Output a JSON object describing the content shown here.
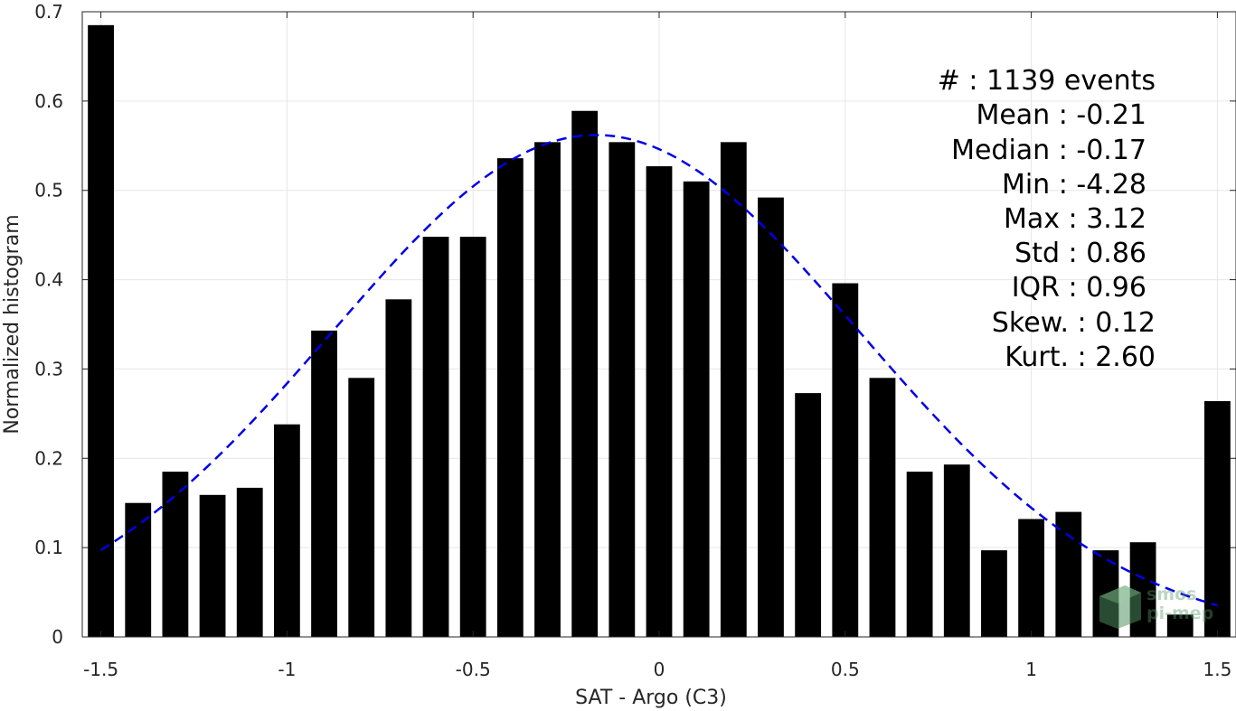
{
  "chart_data": {
    "type": "bar",
    "title": "",
    "xlabel": "SAT - Argo (C3)",
    "ylabel": "Normalized histogram",
    "xlim": [
      -1.55,
      1.55
    ],
    "ylim": [
      0,
      0.7
    ],
    "grid": true,
    "x": [
      -1.5,
      -1.4,
      -1.3,
      -1.2,
      -1.1,
      -1.0,
      -0.9,
      -0.8,
      -0.7,
      -0.6,
      -0.5,
      -0.4,
      -0.3,
      -0.2,
      -0.1,
      0.0,
      0.1,
      0.2,
      0.3,
      0.4,
      0.5,
      0.6,
      0.7,
      0.8,
      0.9,
      1.0,
      1.1,
      1.2,
      1.3,
      1.4,
      1.5
    ],
    "values": [
      0.685,
      0.15,
      0.185,
      0.159,
      0.167,
      0.238,
      0.343,
      0.29,
      0.378,
      0.448,
      0.448,
      0.536,
      0.554,
      0.589,
      0.554,
      0.527,
      0.51,
      0.554,
      0.492,
      0.273,
      0.396,
      0.29,
      0.185,
      0.193,
      0.097,
      0.132,
      0.14,
      0.097,
      0.106,
      0.025,
      0.264
    ],
    "bar_color": "#000000",
    "fit_curve": {
      "type": "gaussian",
      "style": "dashed",
      "color": "#0000e6",
      "mean": -0.17,
      "std": 0.71,
      "peak": 0.562,
      "x_range": [
        -1.5,
        1.5
      ]
    },
    "xticks": [
      "-1.5",
      "-1",
      "-0.5",
      "0",
      "0.5",
      "1",
      "1.5"
    ],
    "xtick_values": [
      -1.5,
      -1.0,
      -0.5,
      0.0,
      0.5,
      1.0,
      1.5
    ],
    "yticks": [
      "0",
      "0.1",
      "0.2",
      "0.3",
      "0.4",
      "0.5",
      "0.6",
      "0.7"
    ],
    "ytick_values": [
      0,
      0.1,
      0.2,
      0.3,
      0.4,
      0.5,
      0.6,
      0.7
    ],
    "annotations": [
      "#  : 1139 events",
      "Mean : -0.21",
      "Median : -0.17",
      "Min : -4.28",
      "Max : 3.12",
      "Std : 0.86",
      "IQR : 0.96",
      "Skew. : 0.12",
      "Kurt. : 2.60"
    ]
  },
  "watermark": {
    "line1": "smos",
    "line2": "pi-mep"
  }
}
